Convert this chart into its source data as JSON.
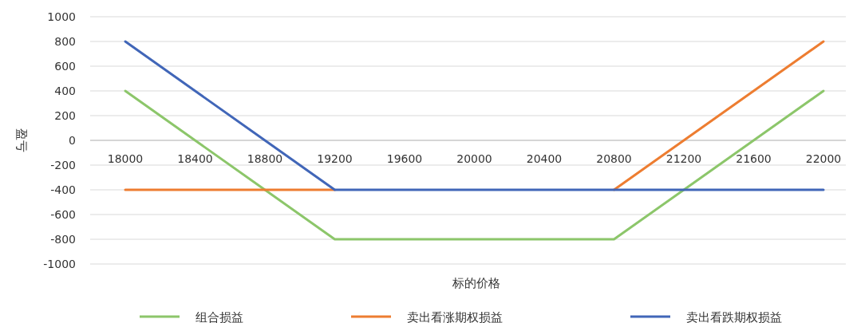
{
  "chart_data": {
    "type": "line",
    "xlabel": "标的价格",
    "ylabel": "盈亏",
    "categories": [
      "18000",
      "18400",
      "18800",
      "19200",
      "19600",
      "20000",
      "20400",
      "20800",
      "21200",
      "21600",
      "22000"
    ],
    "series": [
      {
        "name": "组合损益",
        "color": "#8cc66a",
        "values": [
          400,
          0,
          -400,
          -800,
          -800,
          -800,
          -800,
          -800,
          -400,
          0,
          400
        ]
      },
      {
        "name": "卖出看涨期权损益",
        "color": "#ed7d31",
        "values": [
          -400,
          -400,
          -400,
          -400,
          null,
          null,
          null,
          -400,
          0,
          400,
          800
        ]
      },
      {
        "name": "卖出看跌期权损益",
        "color": "#4166b8",
        "values": [
          800,
          400,
          0,
          -400,
          -400,
          -400,
          -400,
          -400,
          -400,
          -400,
          -400
        ]
      }
    ],
    "ylim": [
      -1000,
      1000
    ],
    "yticks": [
      -1000,
      -800,
      -600,
      -400,
      -200,
      0,
      200,
      400,
      600,
      800,
      1000
    ],
    "grid": "y",
    "legend": "bottom",
    "marker": "none",
    "line_style": "solid"
  }
}
